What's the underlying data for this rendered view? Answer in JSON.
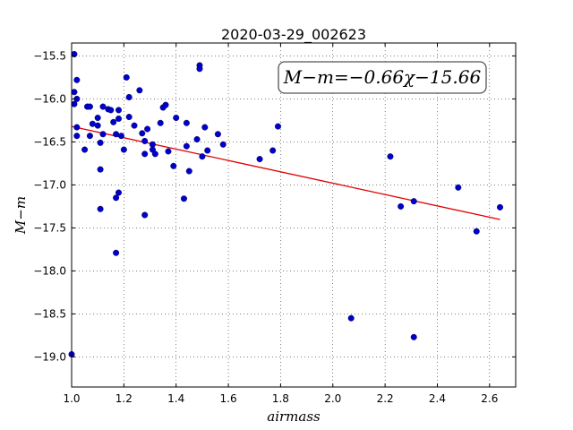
{
  "chart_data": {
    "type": "scatter",
    "title": "2020-03-29_002623",
    "xlabel": "airmass",
    "ylabel": "M−m",
    "annotation": "M−m=−0.66χ−15.66",
    "xlim": [
      1.0,
      2.7
    ],
    "ylim": [
      -19.35,
      -15.35
    ],
    "y_inverted": false,
    "grid": true,
    "xticks": [
      1.0,
      1.2,
      1.4,
      1.6,
      1.8,
      2.0,
      2.2,
      2.4,
      2.6
    ],
    "xtick_labels": [
      "1.0",
      "1.2",
      "1.4",
      "1.6",
      "1.8",
      "2.0",
      "2.2",
      "2.4",
      "2.6"
    ],
    "yticks": [
      -15.5,
      -16.0,
      -16.5,
      -17.0,
      -17.5,
      -18.0,
      -18.5,
      -19.0
    ],
    "ytick_labels": [
      "−15.5",
      "−16.0",
      "−16.5",
      "−17.0",
      "−17.5",
      "−18.0",
      "−18.5",
      "−19.0"
    ],
    "fit_line": {
      "slope": -0.66,
      "intercept": -15.66,
      "x": [
        1.0,
        2.64
      ],
      "color": "#e00000"
    },
    "point_color": "#0000cc",
    "points": [
      [
        1.01,
        -15.48
      ],
      [
        1.01,
        -16.06
      ],
      [
        1.01,
        -15.92
      ],
      [
        1.02,
        -15.78
      ],
      [
        1.02,
        -16.0
      ],
      [
        1.02,
        -16.33
      ],
      [
        1.02,
        -16.43
      ],
      [
        1.05,
        -16.59
      ],
      [
        1.06,
        -16.09
      ],
      [
        1.07,
        -16.09
      ],
      [
        1.07,
        -16.43
      ],
      [
        1.08,
        -16.29
      ],
      [
        1.1,
        -16.31
      ],
      [
        1.1,
        -16.22
      ],
      [
        1.11,
        -16.51
      ],
      [
        1.11,
        -17.28
      ],
      [
        1.11,
        -16.82
      ],
      [
        1.12,
        -16.41
      ],
      [
        1.12,
        -16.09
      ],
      [
        1.14,
        -16.12
      ],
      [
        1.15,
        -16.13
      ],
      [
        1.16,
        -16.27
      ],
      [
        1.17,
        -16.41
      ],
      [
        1.17,
        -17.15
      ],
      [
        1.17,
        -17.79
      ],
      [
        1.18,
        -16.13
      ],
      [
        1.18,
        -16.23
      ],
      [
        1.18,
        -17.09
      ],
      [
        1.19,
        -16.43
      ],
      [
        1.2,
        -16.59
      ],
      [
        1.21,
        -15.75
      ],
      [
        1.22,
        -15.98
      ],
      [
        1.22,
        -16.21
      ],
      [
        1.24,
        -16.31
      ],
      [
        1.26,
        -15.9
      ],
      [
        1.27,
        -16.4
      ],
      [
        1.28,
        -16.64
      ],
      [
        1.28,
        -16.49
      ],
      [
        1.28,
        -17.35
      ],
      [
        1.29,
        -16.35
      ],
      [
        1.31,
        -16.53
      ],
      [
        1.31,
        -16.59
      ],
      [
        1.32,
        -16.64
      ],
      [
        1.34,
        -16.28
      ],
      [
        1.35,
        -16.1
      ],
      [
        1.36,
        -16.07
      ],
      [
        1.37,
        -16.61
      ],
      [
        1.39,
        -16.78
      ],
      [
        1.4,
        -16.22
      ],
      [
        1.43,
        -17.16
      ],
      [
        1.44,
        -16.28
      ],
      [
        1.44,
        -16.55
      ],
      [
        1.45,
        -16.84
      ],
      [
        1.48,
        -16.47
      ],
      [
        1.49,
        -15.61
      ],
      [
        1.49,
        -15.65
      ],
      [
        1.5,
        -16.67
      ],
      [
        1.51,
        -16.33
      ],
      [
        1.52,
        -16.6
      ],
      [
        1.56,
        -16.41
      ],
      [
        1.58,
        -16.53
      ],
      [
        1.72,
        -16.7
      ],
      [
        1.77,
        -16.6
      ],
      [
        1.79,
        -16.32
      ],
      [
        2.07,
        -18.55
      ],
      [
        2.22,
        -16.67
      ],
      [
        2.26,
        -17.25
      ],
      [
        2.31,
        -17.19
      ],
      [
        2.31,
        -18.77
      ],
      [
        2.48,
        -17.03
      ],
      [
        2.55,
        -17.54
      ],
      [
        2.64,
        -17.26
      ],
      [
        1.0,
        -18.97
      ]
    ]
  }
}
